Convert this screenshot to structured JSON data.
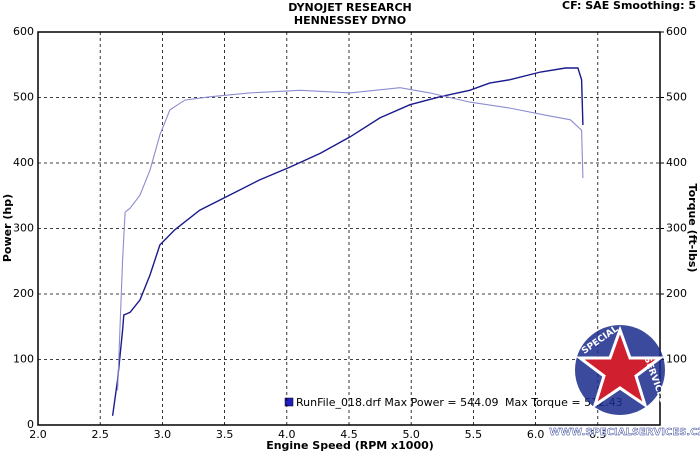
{
  "chart_data": {
    "type": "line",
    "title": "DYNOJET RESEARCH",
    "subtitle": "HENNESSEY DYNO",
    "settings_label": "CF: SAE  Smoothing: 5",
    "xlabel": "Engine Speed (RPM x1000)",
    "ylabel": "Power (hp)",
    "y2label": "Torque (ft-lbs)",
    "xlim": [
      2.0,
      7.0
    ],
    "xticks": [
      {
        "value": 2.0,
        "label": "2.0"
      },
      {
        "value": 2.5,
        "label": "2.5"
      },
      {
        "value": 3.0,
        "label": "3.0"
      },
      {
        "value": 3.5,
        "label": "3.5"
      },
      {
        "value": 4.0,
        "label": "4.0"
      },
      {
        "value": 4.5,
        "label": "4.5"
      },
      {
        "value": 5.0,
        "label": "5.0"
      },
      {
        "value": 5.5,
        "label": "5.5"
      },
      {
        "value": 6.0,
        "label": "6.0"
      },
      {
        "value": 6.5,
        "label": "6.5"
      }
    ],
    "ylim": [
      0,
      600
    ],
    "yticks": [
      0,
      100,
      200,
      300,
      400,
      500,
      600
    ],
    "y2lim": [
      0,
      600
    ],
    "y2ticks": [
      100,
      200,
      300,
      400,
      500,
      600
    ],
    "grid": true,
    "legend_file": "RunFile_018.drf Max Power = 544.09",
    "legend_torque": "Max Torque = 512.43",
    "series": [
      {
        "name": "Power",
        "color": "#1a1a8c",
        "x": [
          2.6,
          2.64,
          2.68,
          2.69,
          2.74,
          2.82,
          2.9,
          2.98,
          3.1,
          3.3,
          3.54,
          3.78,
          4.03,
          4.27,
          4.51,
          4.75,
          4.99,
          5.23,
          5.47,
          5.63,
          5.79,
          6.04,
          6.24,
          6.34,
          6.37,
          6.38
        ],
        "values": [
          14,
          69,
          145,
          168,
          172,
          191,
          229,
          275,
          298,
          328,
          351,
          374,
          394,
          415,
          440,
          469,
          489,
          501,
          511,
          522,
          527,
          539,
          545,
          545,
          527,
          458
        ]
      },
      {
        "name": "Torque",
        "color": "#8c8cd0",
        "axis": "y2",
        "x": [
          2.64,
          2.68,
          2.7,
          2.74,
          2.82,
          2.9,
          2.98,
          3.06,
          3.18,
          3.38,
          3.7,
          4.11,
          4.51,
          4.91,
          5.15,
          5.47,
          5.79,
          6.08,
          6.28,
          6.37,
          6.38
        ],
        "values": [
          53,
          252,
          325,
          331,
          351,
          389,
          443,
          481,
          496,
          501,
          507,
          511,
          507,
          515,
          507,
          493,
          484,
          473,
          466,
          450,
          377
        ]
      }
    ],
    "watermark": {
      "url": "WWW.SPECIALSERVICES.CZ",
      "word1": "SPECIAL",
      "word2": "SERVICES"
    }
  }
}
